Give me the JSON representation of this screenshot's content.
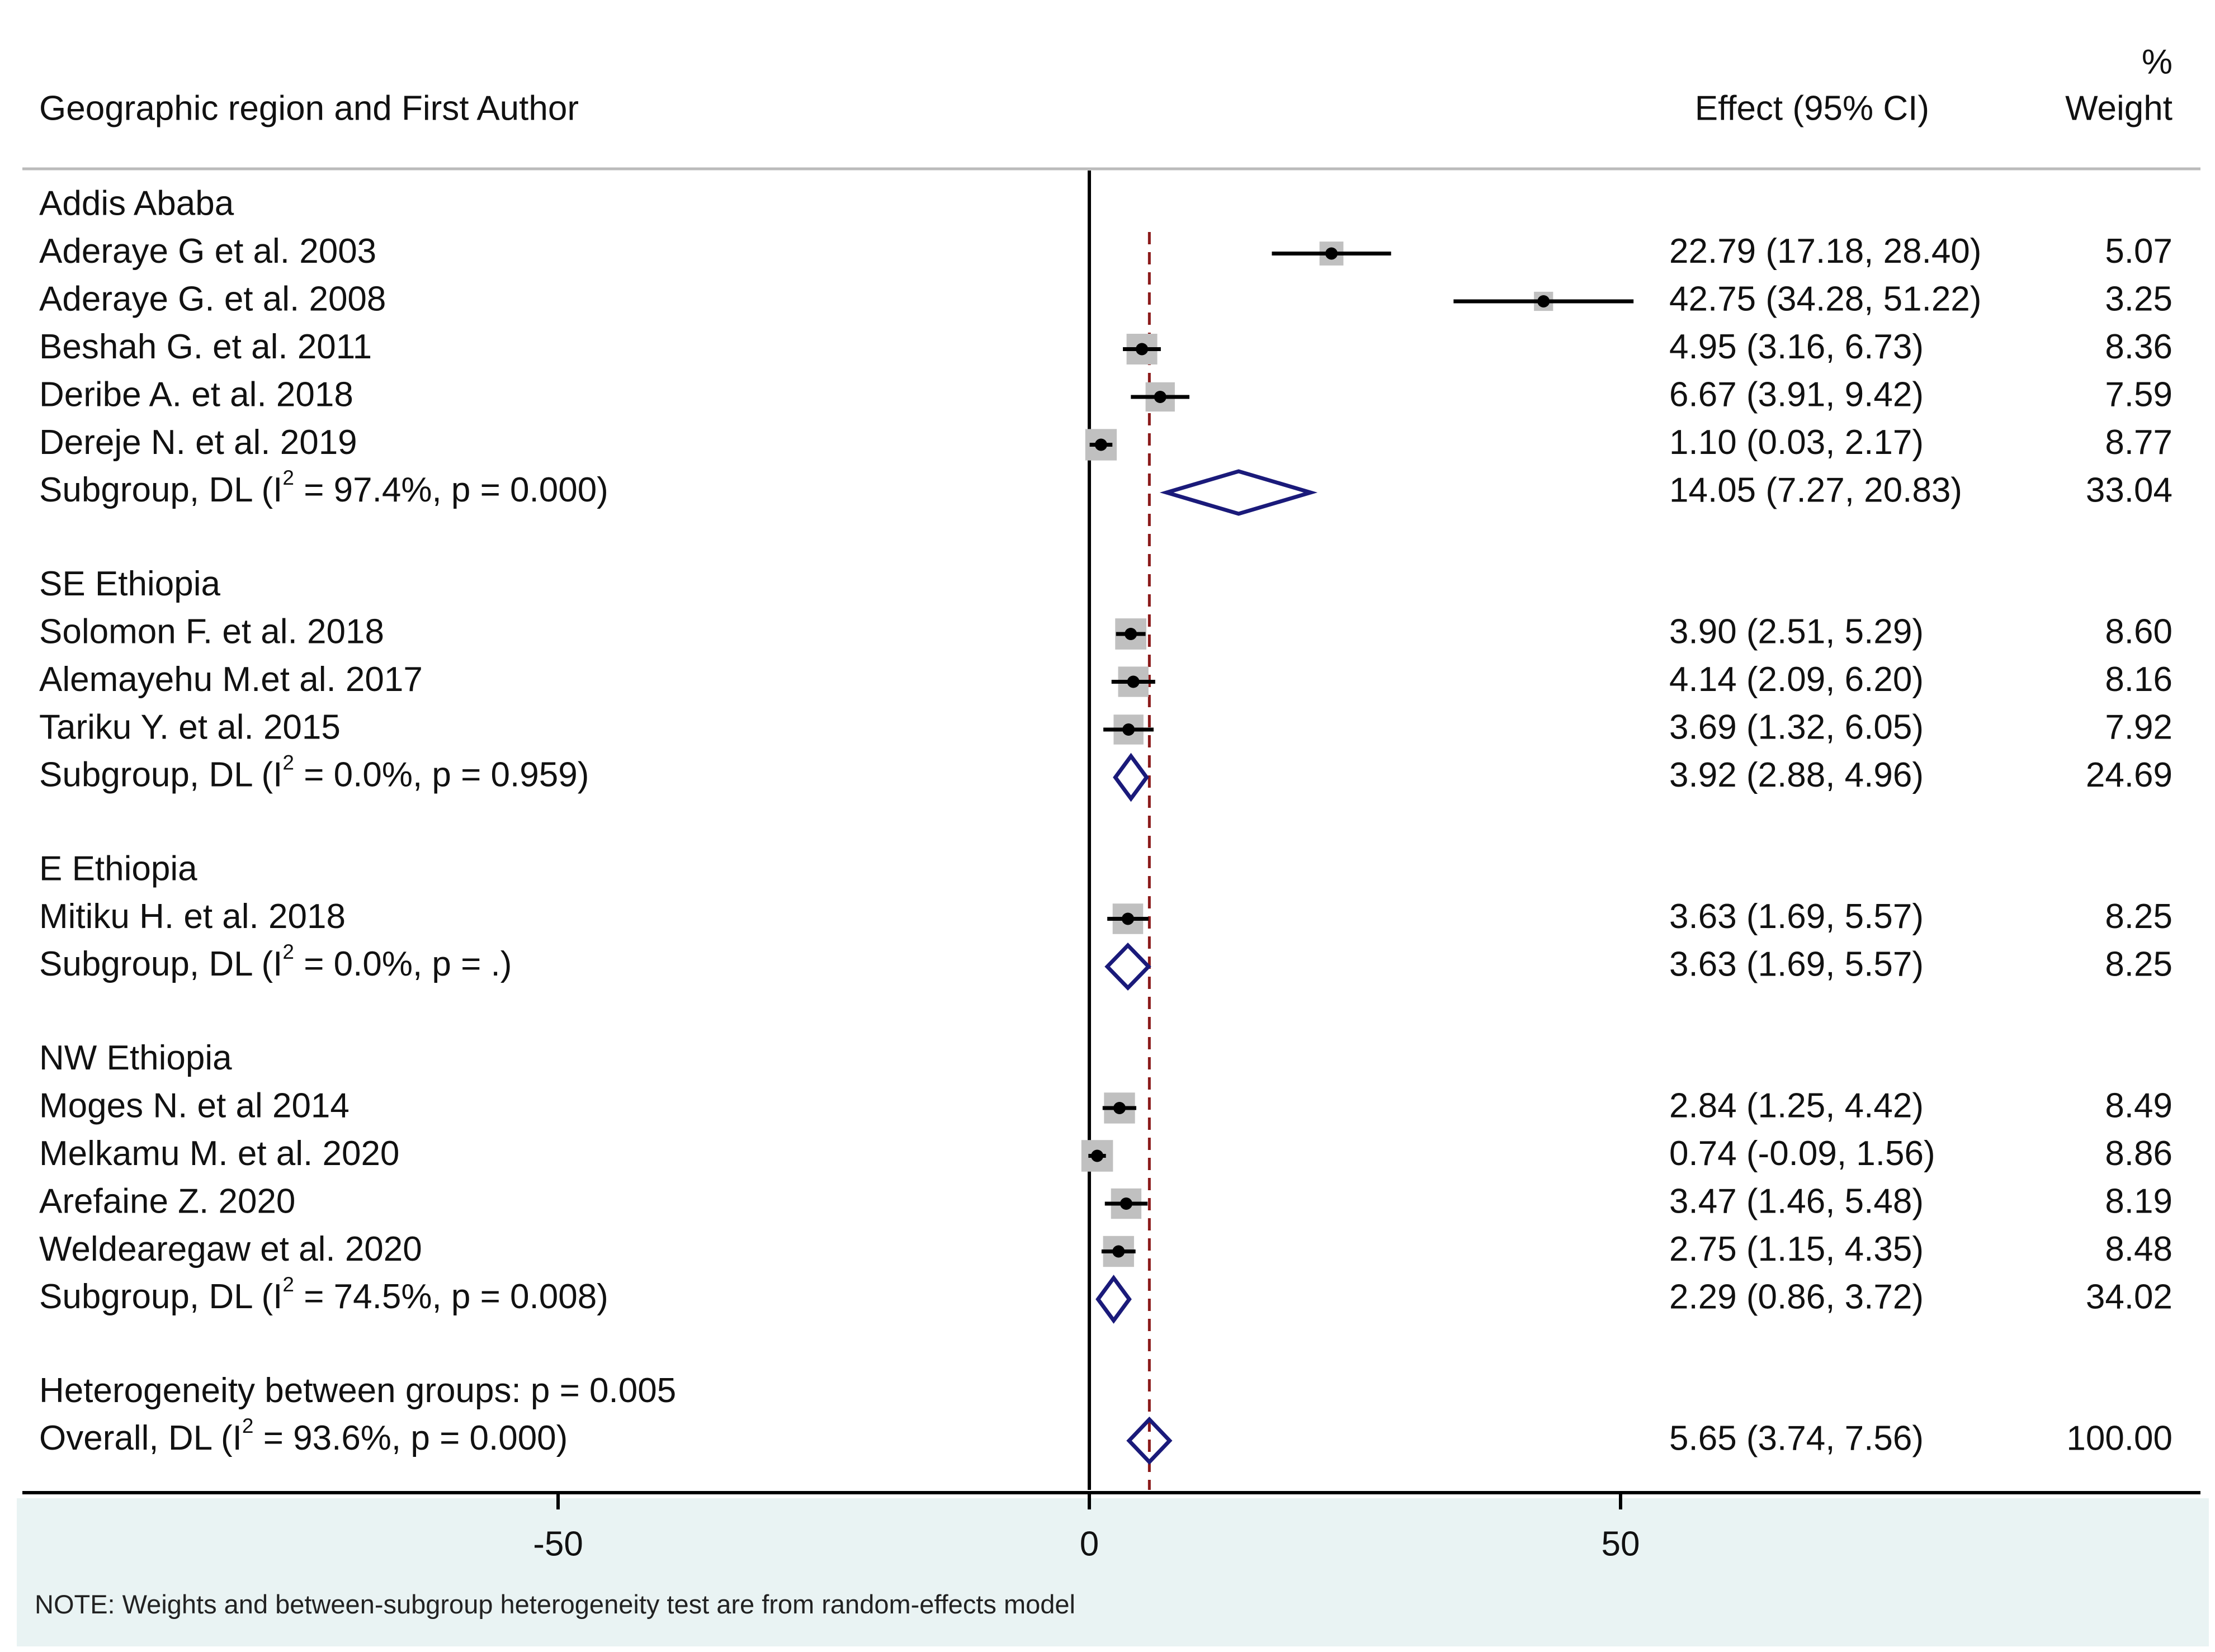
{
  "chart_data": {
    "type": "forest",
    "headers": {
      "label": "Geographic region and First Author",
      "effect": "Effect (95% CI)",
      "weight_top": "%",
      "weight": "Weight"
    },
    "xaxis": {
      "ticks": [
        -50,
        0,
        50
      ],
      "tick_labels": [
        "-50",
        "0",
        "50"
      ],
      "range": [
        -100,
        100
      ]
    },
    "overall_line": 5.65,
    "rows": [
      {
        "kind": "group",
        "label": "Addis Ababa"
      },
      {
        "kind": "study",
        "label": "Aderaye G et al. 2003",
        "effect": 22.79,
        "lo": 17.18,
        "hi": 28.4,
        "ci_text": "22.79 (17.18, 28.40)",
        "weight": 5.07,
        "weight_text": "5.07"
      },
      {
        "kind": "study",
        "label": "Aderaye G. et al. 2008",
        "effect": 42.75,
        "lo": 34.28,
        "hi": 51.22,
        "ci_text": "42.75 (34.28, 51.22)",
        "weight": 3.25,
        "weight_text": "3.25"
      },
      {
        "kind": "study",
        "label": "Beshah G. et al. 2011",
        "effect": 4.95,
        "lo": 3.16,
        "hi": 6.73,
        "ci_text": "4.95 (3.16, 6.73)",
        "weight": 8.36,
        "weight_text": "8.36"
      },
      {
        "kind": "study",
        "label": "Deribe A.  et al. 2018",
        "effect": 6.67,
        "lo": 3.91,
        "hi": 9.42,
        "ci_text": "6.67 (3.91, 9.42)",
        "weight": 7.59,
        "weight_text": "7.59"
      },
      {
        "kind": "study",
        "label": "Dereje N. et al. 2019",
        "effect": 1.1,
        "lo": 0.03,
        "hi": 2.17,
        "ci_text": "1.10 (0.03, 2.17)",
        "weight": 8.77,
        "weight_text": "8.77"
      },
      {
        "kind": "subgroup",
        "label_pre": "Subgroup, DL (I",
        "label_sup": "2",
        "label_post": " = 97.4%, p = 0.000)",
        "effect": 14.05,
        "lo": 7.27,
        "hi": 20.83,
        "ci_text": "14.05 (7.27, 20.83)",
        "weight_text": "33.04"
      },
      {
        "kind": "spacer"
      },
      {
        "kind": "group",
        "label": "SE Ethiopia"
      },
      {
        "kind": "study",
        "label": "Solomon F. et al. 2018",
        "effect": 3.9,
        "lo": 2.51,
        "hi": 5.29,
        "ci_text": "3.90 (2.51, 5.29)",
        "weight": 8.6,
        "weight_text": "8.60"
      },
      {
        "kind": "study",
        "label": "Alemayehu M.et al. 2017",
        "effect": 4.14,
        "lo": 2.09,
        "hi": 6.2,
        "ci_text": "4.14 (2.09, 6.20)",
        "weight": 8.16,
        "weight_text": "8.16"
      },
      {
        "kind": "study",
        "label": "Tariku Y. et al. 2015",
        "effect": 3.69,
        "lo": 1.32,
        "hi": 6.05,
        "ci_text": "3.69 (1.32, 6.05)",
        "weight": 7.92,
        "weight_text": "7.92"
      },
      {
        "kind": "subgroup",
        "label_pre": "Subgroup, DL (I",
        "label_sup": "2",
        "label_post": " = 0.0%, p = 0.959)",
        "effect": 3.92,
        "lo": 2.88,
        "hi": 4.96,
        "ci_text": "3.92 (2.88, 4.96)",
        "weight_text": "24.69"
      },
      {
        "kind": "spacer"
      },
      {
        "kind": "group",
        "label": "E Ethiopia"
      },
      {
        "kind": "study",
        "label": "Mitiku H. et al. 2018",
        "effect": 3.63,
        "lo": 1.69,
        "hi": 5.57,
        "ci_text": "3.63 (1.69, 5.57)",
        "weight": 8.25,
        "weight_text": "8.25"
      },
      {
        "kind": "subgroup",
        "label_pre": "Subgroup, DL (I",
        "label_sup": "2",
        "label_post": " = 0.0%, p = .)",
        "effect": 3.63,
        "lo": 1.69,
        "hi": 5.57,
        "ci_text": "3.63 (1.69, 5.57)",
        "weight_text": "8.25"
      },
      {
        "kind": "spacer"
      },
      {
        "kind": "group",
        "label": "NW Ethiopia"
      },
      {
        "kind": "study",
        "label": "Moges N. et al 2014",
        "effect": 2.84,
        "lo": 1.25,
        "hi": 4.42,
        "ci_text": "2.84 (1.25, 4.42)",
        "weight": 8.49,
        "weight_text": "8.49"
      },
      {
        "kind": "study",
        "label": "Melkamu M. et al. 2020",
        "effect": 0.74,
        "lo": -0.09,
        "hi": 1.56,
        "ci_text": "0.74 (-0.09, 1.56)",
        "weight": 8.86,
        "weight_text": "8.86"
      },
      {
        "kind": "study",
        "label": "Arefaine Z. 2020",
        "effect": 3.47,
        "lo": 1.46,
        "hi": 5.48,
        "ci_text": "3.47 (1.46, 5.48)",
        "weight": 8.19,
        "weight_text": "8.19"
      },
      {
        "kind": "study",
        "label": "Weldearegaw et al. 2020",
        "effect": 2.75,
        "lo": 1.15,
        "hi": 4.35,
        "ci_text": "2.75 (1.15, 4.35)",
        "weight": 8.48,
        "weight_text": "8.48"
      },
      {
        "kind": "subgroup",
        "label_pre": "Subgroup, DL (I",
        "label_sup": "2",
        "label_post": " = 74.5%, p = 0.008)",
        "effect": 2.29,
        "lo": 0.86,
        "hi": 3.72,
        "ci_text": "2.29 (0.86, 3.72)",
        "weight_text": "34.02"
      },
      {
        "kind": "spacer"
      },
      {
        "kind": "text",
        "label": "Heterogeneity between groups: p = 0.005"
      },
      {
        "kind": "overall",
        "label_pre": "Overall, DL (I",
        "label_sup": "2",
        "label_post": " = 93.6%, p = 0.000)",
        "effect": 5.65,
        "lo": 3.74,
        "hi": 7.56,
        "ci_text": "5.65 (3.74, 7.56)",
        "weight_text": "100.00"
      }
    ],
    "note": "NOTE: Weights and between-subgroup heterogeneity test are from random-effects model",
    "colors": {
      "diamond": "#1a1a7a",
      "reference": "#8b1a1a",
      "box": "#c0c0c0",
      "line": "#000000",
      "band": "#e9f3f3"
    }
  }
}
